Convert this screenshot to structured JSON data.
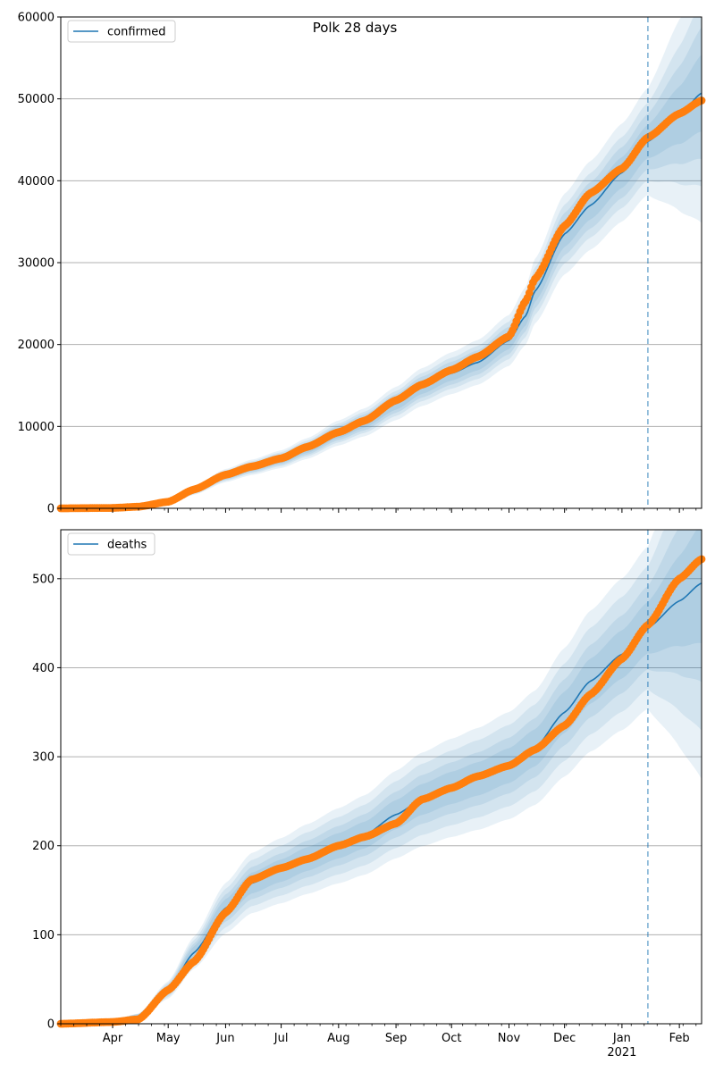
{
  "figure_title": "Polk 28 days",
  "colors": {
    "model_line": "#1f77b4",
    "observed_points": "#ff7f0e",
    "band": "#1f77b4",
    "forecast_marker": "#1f77b4",
    "grid": "#b0b0b0"
  },
  "x_axis": {
    "ticks": [
      {
        "date": "2020-04-01",
        "label": "Apr"
      },
      {
        "date": "2020-05-01",
        "label": "May"
      },
      {
        "date": "2020-06-01",
        "label": "Jun"
      },
      {
        "date": "2020-07-01",
        "label": "Jul"
      },
      {
        "date": "2020-08-01",
        "label": "Aug"
      },
      {
        "date": "2020-09-01",
        "label": "Sep"
      },
      {
        "date": "2020-10-01",
        "label": "Oct"
      },
      {
        "date": "2020-11-01",
        "label": "Nov"
      },
      {
        "date": "2020-12-01",
        "label": "Dec"
      },
      {
        "date": "2021-01-01",
        "label": "Jan",
        "sublabel": "2021"
      },
      {
        "date": "2021-02-01",
        "label": "Feb"
      }
    ],
    "range": [
      "2020-03-04",
      "2021-02-13"
    ],
    "forecast_start": "2021-01-15",
    "minor_ticks": "weekly"
  },
  "chart_data": [
    {
      "type": "line",
      "legend": "confirmed",
      "legend_position": "upper-left",
      "ylim": [
        0,
        60000
      ],
      "yticks": [
        0,
        10000,
        20000,
        30000,
        40000,
        50000,
        60000
      ],
      "grid": "horizontal",
      "model": [
        [
          "2020-03-04",
          0
        ],
        [
          "2020-04-01",
          60
        ],
        [
          "2020-04-15",
          150
        ],
        [
          "2020-05-01",
          700
        ],
        [
          "2020-05-15",
          2200
        ],
        [
          "2020-06-01",
          4000
        ],
        [
          "2020-06-15",
          5000
        ],
        [
          "2020-07-01",
          6000
        ],
        [
          "2020-07-15",
          7300
        ],
        [
          "2020-08-01",
          9200
        ],
        [
          "2020-08-15",
          10500
        ],
        [
          "2020-09-01",
          12800
        ],
        [
          "2020-09-15",
          14800
        ],
        [
          "2020-10-01",
          16500
        ],
        [
          "2020-10-15",
          17800
        ],
        [
          "2020-11-01",
          20500
        ],
        [
          "2020-11-10",
          23500
        ],
        [
          "2020-11-15",
          26500
        ],
        [
          "2020-12-01",
          33500
        ],
        [
          "2020-12-15",
          37000
        ],
        [
          "2021-01-01",
          41000
        ],
        [
          "2021-01-15",
          44800
        ],
        [
          "2021-02-01",
          48000
        ],
        [
          "2021-02-13",
          50700
        ]
      ],
      "band_spread": [
        0.04,
        0.07,
        0.1,
        0.14
      ],
      "observed": [
        [
          "2020-03-04",
          0
        ],
        [
          "2020-04-01",
          50
        ],
        [
          "2020-04-15",
          200
        ],
        [
          "2020-05-01",
          800
        ],
        [
          "2020-05-15",
          2300
        ],
        [
          "2020-06-01",
          4100
        ],
        [
          "2020-06-15",
          5100
        ],
        [
          "2020-07-01",
          6100
        ],
        [
          "2020-07-15",
          7500
        ],
        [
          "2020-08-01",
          9300
        ],
        [
          "2020-08-15",
          10700
        ],
        [
          "2020-09-01",
          13200
        ],
        [
          "2020-09-15",
          15100
        ],
        [
          "2020-10-01",
          16900
        ],
        [
          "2020-10-15",
          18500
        ],
        [
          "2020-11-01",
          21000
        ],
        [
          "2020-11-10",
          25300
        ],
        [
          "2020-11-15",
          28000
        ],
        [
          "2020-12-01",
          34500
        ],
        [
          "2020-12-15",
          38500
        ],
        [
          "2021-01-01",
          41500
        ],
        [
          "2021-01-15",
          45300
        ],
        [
          "2021-02-01",
          48200
        ],
        [
          "2021-02-13",
          49800
        ]
      ]
    },
    {
      "type": "line",
      "legend": "deaths",
      "legend_position": "upper-left",
      "ylim": [
        0,
        555
      ],
      "yticks": [
        0,
        100,
        200,
        300,
        400,
        500
      ],
      "grid": "horizontal",
      "model": [
        [
          "2020-03-04",
          0
        ],
        [
          "2020-04-01",
          2
        ],
        [
          "2020-04-15",
          8
        ],
        [
          "2020-05-01",
          38
        ],
        [
          "2020-05-15",
          80
        ],
        [
          "2020-06-01",
          130
        ],
        [
          "2020-06-15",
          158
        ],
        [
          "2020-07-01",
          172
        ],
        [
          "2020-07-15",
          185
        ],
        [
          "2020-08-01",
          200
        ],
        [
          "2020-08-15",
          212
        ],
        [
          "2020-09-01",
          235
        ],
        [
          "2020-09-15",
          252
        ],
        [
          "2020-10-01",
          265
        ],
        [
          "2020-10-15",
          275
        ],
        [
          "2020-11-01",
          290
        ],
        [
          "2020-11-15",
          310
        ],
        [
          "2020-12-01",
          350
        ],
        [
          "2020-12-15",
          385
        ],
        [
          "2021-01-01",
          415
        ],
        [
          "2021-01-15",
          445
        ],
        [
          "2021-02-01",
          475
        ],
        [
          "2021-02-13",
          495
        ]
      ],
      "band_spread": [
        0.06,
        0.1,
        0.15,
        0.2
      ],
      "observed": [
        [
          "2020-03-04",
          0
        ],
        [
          "2020-04-01",
          2
        ],
        [
          "2020-04-15",
          5
        ],
        [
          "2020-05-01",
          38
        ],
        [
          "2020-05-15",
          70
        ],
        [
          "2020-06-01",
          125
        ],
        [
          "2020-06-15",
          162
        ],
        [
          "2020-07-01",
          175
        ],
        [
          "2020-07-15",
          185
        ],
        [
          "2020-08-01",
          200
        ],
        [
          "2020-08-15",
          210
        ],
        [
          "2020-09-01",
          225
        ],
        [
          "2020-09-15",
          252
        ],
        [
          "2020-10-01",
          265
        ],
        [
          "2020-10-15",
          278
        ],
        [
          "2020-11-01",
          290
        ],
        [
          "2020-11-15",
          308
        ],
        [
          "2020-12-01",
          335
        ],
        [
          "2020-12-15",
          370
        ],
        [
          "2021-01-01",
          410
        ],
        [
          "2021-01-15",
          448
        ],
        [
          "2021-02-01",
          500
        ],
        [
          "2021-02-13",
          522
        ]
      ]
    }
  ]
}
